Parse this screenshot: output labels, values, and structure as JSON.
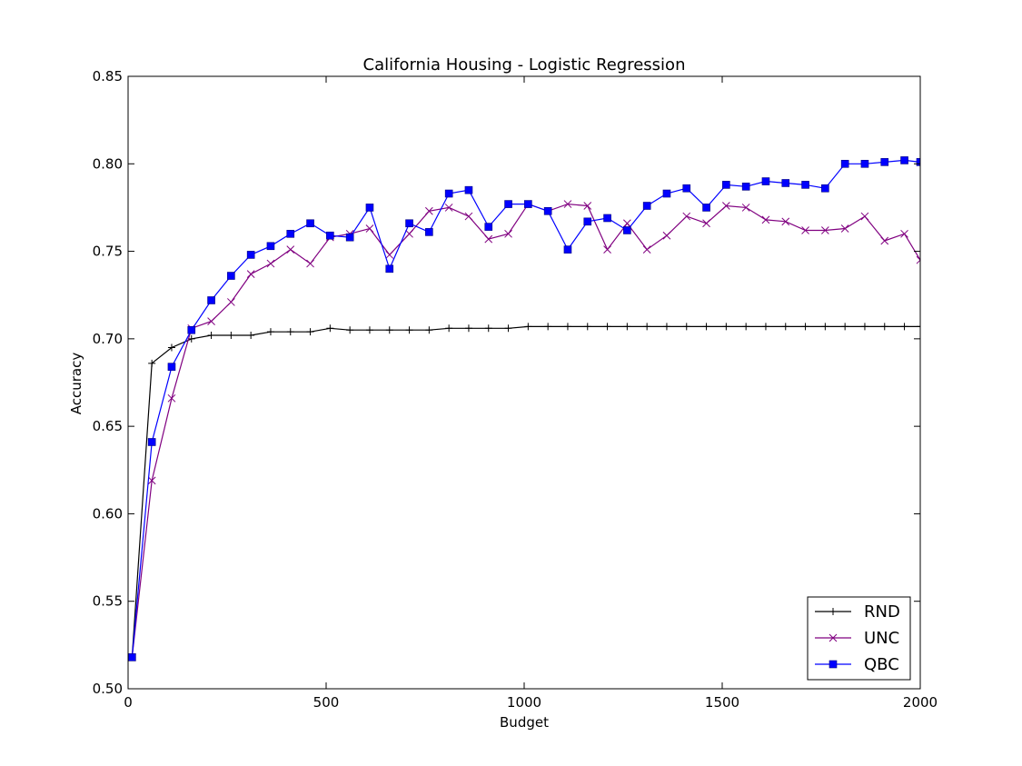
{
  "chart_data": {
    "type": "line",
    "title": "California Housing - Logistic Regression",
    "xlabel": "Budget",
    "ylabel": "Accuracy",
    "xlim": [
      0,
      2000
    ],
    "ylim": [
      0.5,
      0.85
    ],
    "xticks": [
      0,
      500,
      1000,
      1500,
      2000
    ],
    "xtick_labels": [
      "0",
      "500",
      "1000",
      "1500",
      "2000"
    ],
    "yticks": [
      0.5,
      0.55,
      0.6,
      0.65,
      0.7,
      0.75,
      0.8,
      0.85
    ],
    "ytick_labels": [
      "0.50",
      "0.55",
      "0.60",
      "0.65",
      "0.70",
      "0.75",
      "0.80",
      "0.85"
    ],
    "grid": false,
    "legend_position": "bottom-right",
    "x": [
      10,
      60,
      110,
      160,
      210,
      260,
      310,
      360,
      410,
      460,
      510,
      560,
      610,
      660,
      710,
      760,
      810,
      860,
      910,
      960,
      1010,
      1060,
      1110,
      1160,
      1210,
      1260,
      1310,
      1360,
      1410,
      1460,
      1510,
      1560,
      1610,
      1660,
      1710,
      1760,
      1810,
      1860,
      1910,
      1960,
      2000
    ],
    "series": [
      {
        "name": "RND",
        "color": "#000000",
        "marker": "plus",
        "values": [
          0.518,
          0.686,
          0.695,
          0.7,
          0.702,
          0.702,
          0.702,
          0.704,
          0.704,
          0.704,
          0.706,
          0.705,
          0.705,
          0.705,
          0.705,
          0.705,
          0.706,
          0.706,
          0.706,
          0.706,
          0.707,
          0.707,
          0.707,
          0.707,
          0.707,
          0.707,
          0.707,
          0.707,
          0.707,
          0.707,
          0.707,
          0.707,
          0.707,
          0.707,
          0.707,
          0.707,
          0.707,
          0.707,
          0.707,
          0.707,
          0.707
        ]
      },
      {
        "name": "UNC",
        "color": "#800080",
        "marker": "x",
        "values": [
          0.518,
          0.619,
          0.666,
          0.706,
          0.71,
          0.721,
          0.737,
          0.743,
          0.751,
          0.743,
          0.758,
          0.76,
          0.763,
          0.748,
          0.76,
          0.773,
          0.775,
          0.77,
          0.757,
          0.76,
          0.777,
          0.773,
          0.777,
          0.776,
          0.751,
          0.766,
          0.751,
          0.759,
          0.77,
          0.766,
          0.776,
          0.775,
          0.768,
          0.767,
          0.762,
          0.762,
          0.763,
          0.77,
          0.756,
          0.76,
          0.745
        ]
      },
      {
        "name": "QBC",
        "color": "#0000ff",
        "marker": "square",
        "values": [
          0.518,
          0.641,
          0.684,
          0.705,
          0.722,
          0.736,
          0.748,
          0.753,
          0.76,
          0.766,
          0.759,
          0.758,
          0.775,
          0.74,
          0.766,
          0.761,
          0.783,
          0.785,
          0.764,
          0.777,
          0.777,
          0.773,
          0.751,
          0.767,
          0.769,
          0.762,
          0.776,
          0.783,
          0.786,
          0.775,
          0.788,
          0.787,
          0.79,
          0.789,
          0.788,
          0.786,
          0.8,
          0.8,
          0.801,
          0.802,
          0.801
        ]
      }
    ]
  }
}
